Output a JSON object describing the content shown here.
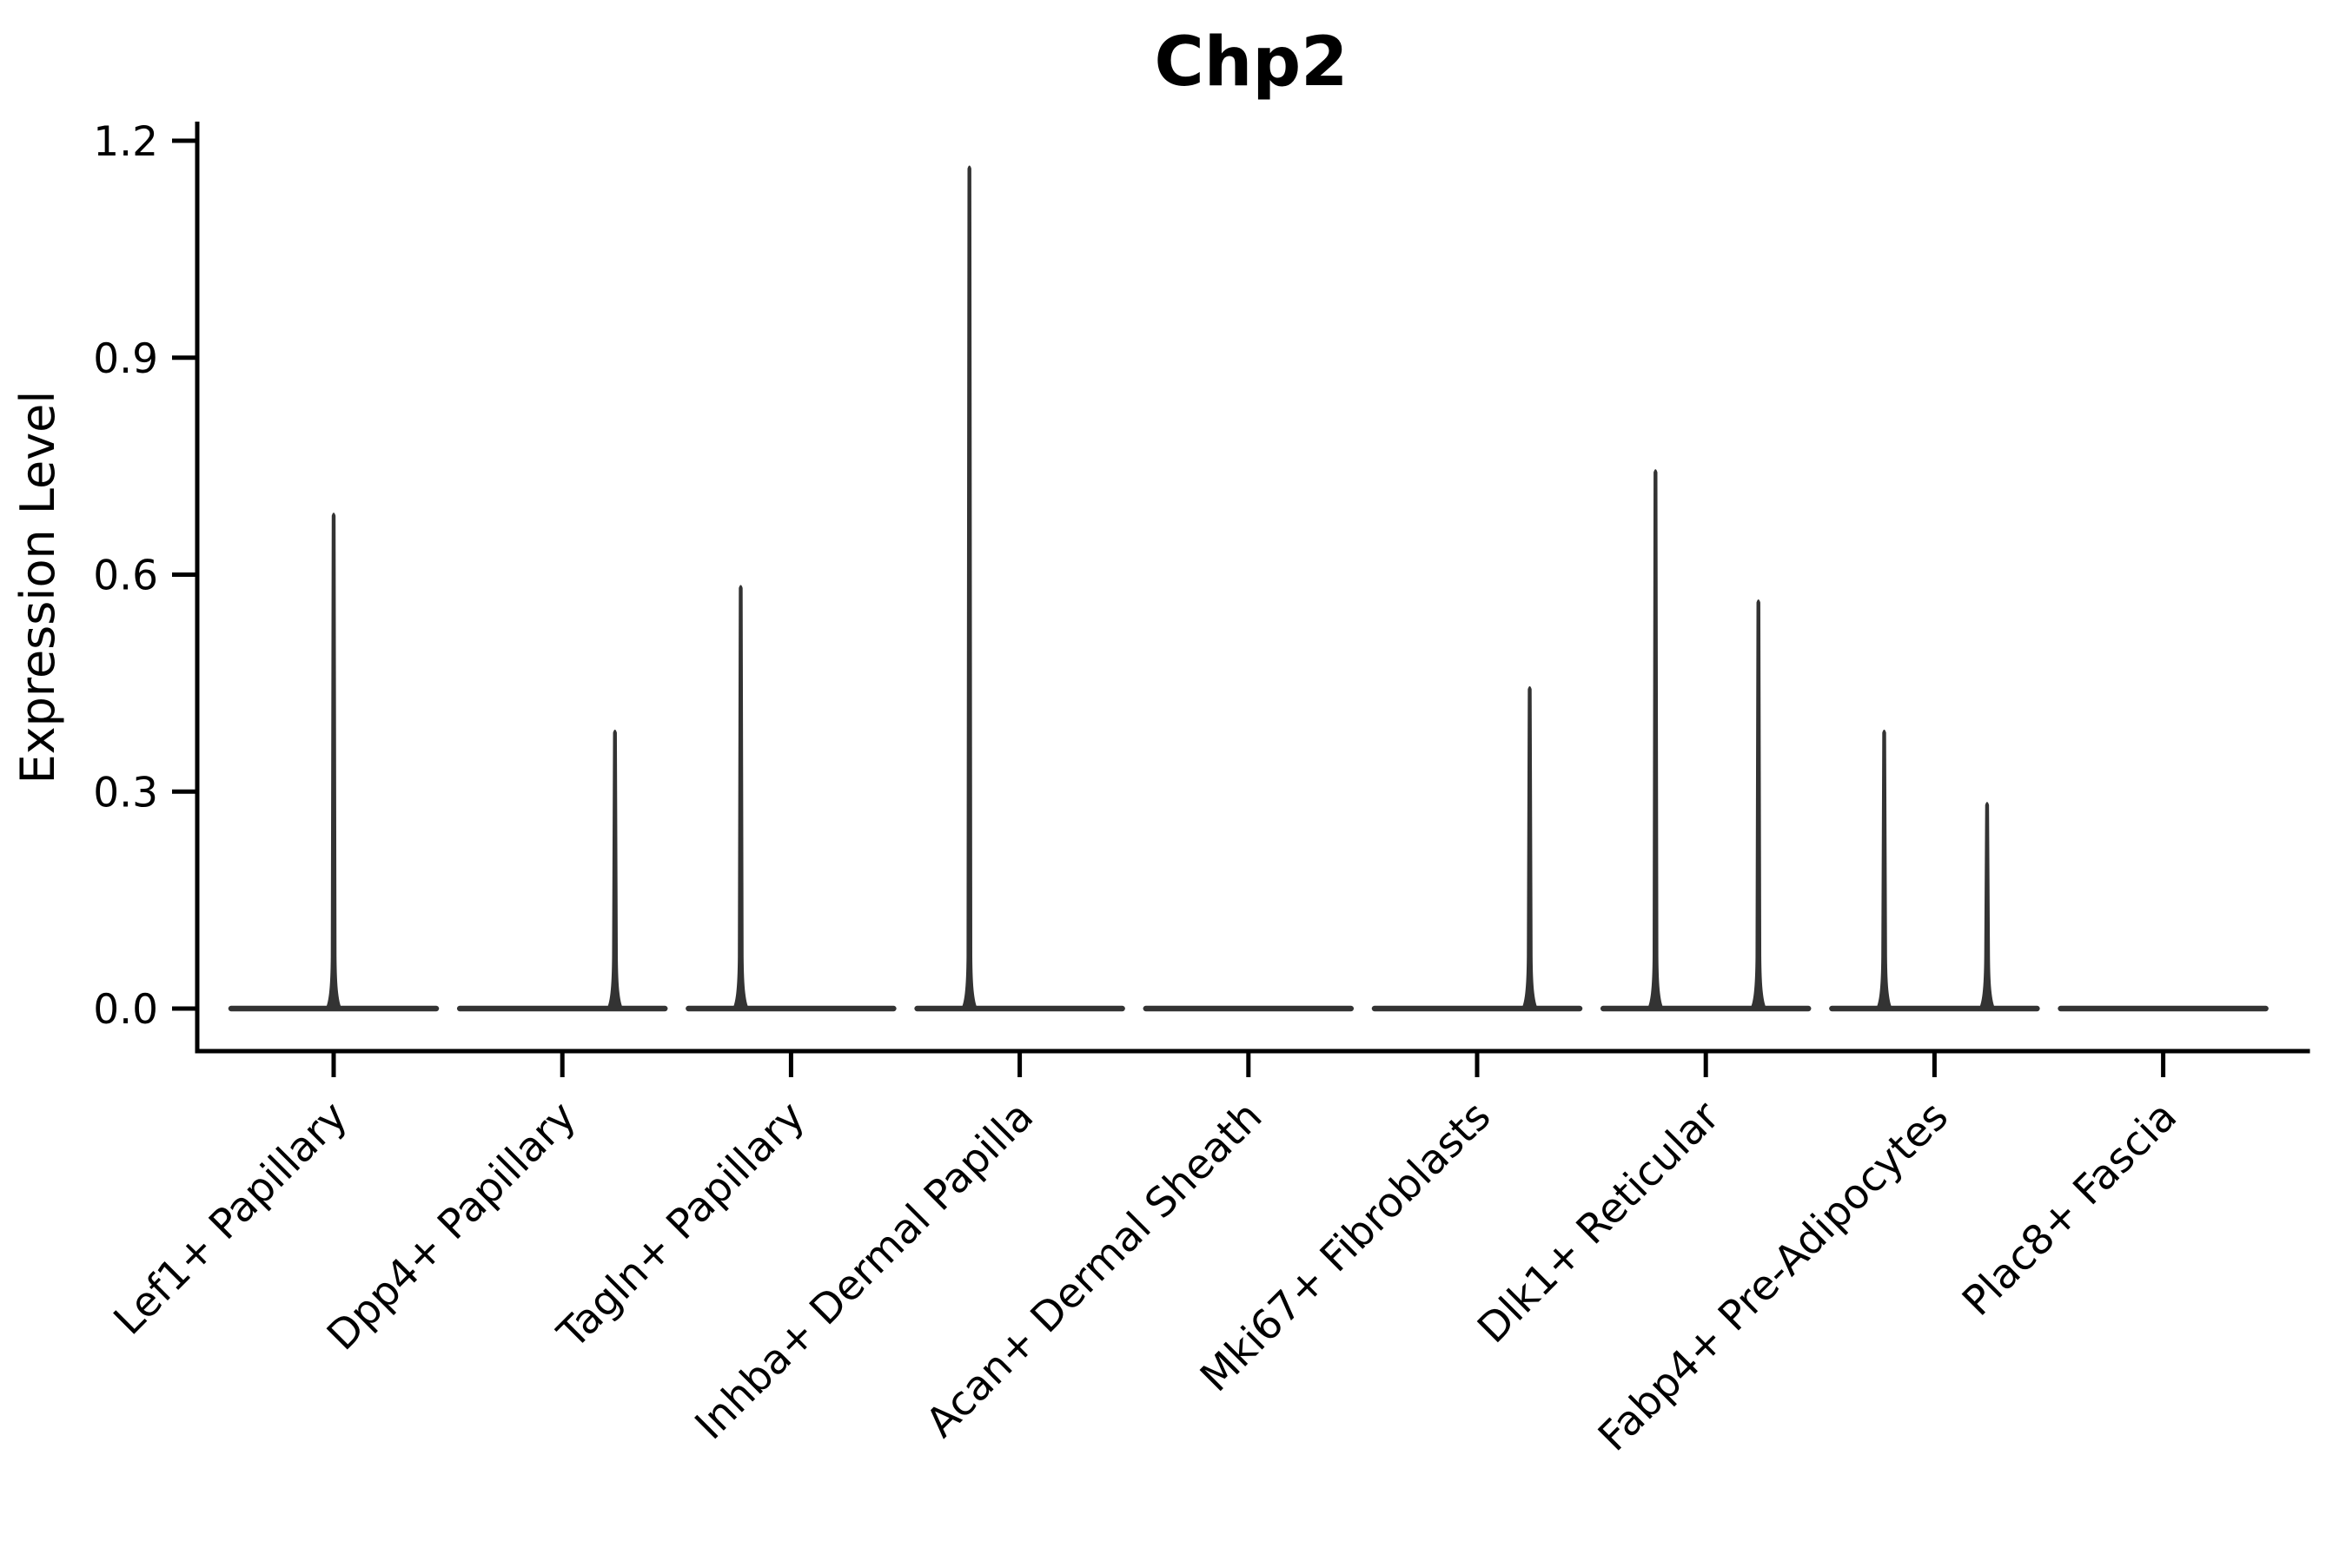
{
  "figure": {
    "title": "Chp2",
    "ylabel": "Expression Level"
  },
  "chart_data": {
    "type": "violin",
    "title": "Chp2",
    "xlabel": "",
    "ylabel": "Expression Level",
    "ylim": [
      0,
      1.2
    ],
    "grid": false,
    "legend": "none",
    "x_tick_rotation": 45,
    "yticks": [
      {
        "label": "0.0",
        "value": 0.0
      },
      {
        "label": "0.3",
        "value": 0.3
      },
      {
        "label": "0.6",
        "value": 0.6
      },
      {
        "label": "0.9",
        "value": 0.9
      },
      {
        "label": "1.2",
        "value": 1.2
      }
    ],
    "categories": [
      "Lef1+ Papillary",
      "Dpp4+ Papillary",
      "Tagln+ Papillary",
      "Inhba+ Dermal Papilla",
      "Acan+ Dermal Sheath",
      "Mki67+ Fibroblasts",
      "Dlk1+ Reticular",
      "Fabp4+ Pre-Adipocytes",
      "Plac8+ Fascia"
    ],
    "violins": [
      {
        "category": "Lef1+ Papillary",
        "baseline_value": 0.0,
        "spikes": [
          {
            "position": 0.0,
            "max": 0.69
          }
        ]
      },
      {
        "category": "Dpp4+ Papillary",
        "baseline_value": 0.0,
        "spikes": [
          {
            "position": 0.23,
            "max": 0.39
          }
        ]
      },
      {
        "category": "Tagln+ Papillary",
        "baseline_value": 0.0,
        "spikes": [
          {
            "position": -0.22,
            "max": 0.59
          }
        ]
      },
      {
        "category": "Inhba+ Dermal Papilla",
        "baseline_value": 0.0,
        "spikes": [
          {
            "position": -0.22,
            "max": 1.17
          }
        ]
      },
      {
        "category": "Acan+ Dermal Sheath",
        "baseline_value": 0.0,
        "spikes": []
      },
      {
        "category": "Mki67+ Fibroblasts",
        "baseline_value": 0.0,
        "spikes": [
          {
            "position": 0.23,
            "max": 0.45
          }
        ]
      },
      {
        "category": "Dlk1+ Reticular",
        "baseline_value": 0.0,
        "spikes": [
          {
            "position": -0.22,
            "max": 0.75
          },
          {
            "position": 0.23,
            "max": 0.57
          }
        ]
      },
      {
        "category": "Fabp4+ Pre-Adipocytes",
        "baseline_value": 0.0,
        "spikes": [
          {
            "position": -0.22,
            "max": 0.39
          },
          {
            "position": 0.23,
            "max": 0.29
          }
        ]
      },
      {
        "category": "Plac8+ Fascia",
        "baseline_value": 0.0,
        "spikes": []
      }
    ],
    "style": {
      "violin_color": "#333333",
      "axis_color": "#000000",
      "background": "#ffffff"
    }
  }
}
